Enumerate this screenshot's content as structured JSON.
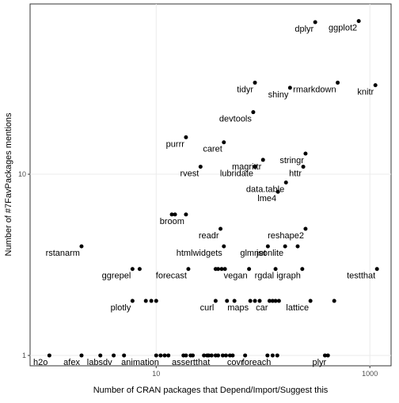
{
  "chart_data": {
    "type": "scatter",
    "x_label": "Number of CRAN packages that Depend/Import/Suggest this",
    "y_label": "Number of #7FavPackages mentions",
    "log_x": true,
    "log_y": true,
    "grid": true,
    "color": "#000000",
    "xlim": [
      0.66,
      1580
    ],
    "ylim": [
      0.877,
      87
    ],
    "xticks": [
      10,
      1000
    ],
    "yticks": [
      1,
      10
    ],
    "x": [
      1,
      2,
      3,
      4,
      5,
      10,
      11,
      12,
      13,
      18,
      19,
      21,
      22,
      28,
      30,
      31,
      33,
      36,
      38,
      42,
      45,
      49,
      52,
      68,
      110,
      123,
      136,
      380,
      405,
      6,
      8,
      9,
      10,
      36,
      46,
      54,
      76,
      84,
      93,
      115,
      123,
      131,
      141,
      278,
      464,
      6,
      7,
      20,
      36,
      38,
      41,
      44,
      74,
      131,
      233,
      1166,
      2,
      43,
      111,
      161,
      211,
      40,
      250,
      14,
      15,
      19,
      138,
      164,
      26,
      84,
      238,
      100,
      250,
      43,
      19,
      81,
      179,
      84,
      500,
      1127,
      308,
      787
    ],
    "values": [
      1,
      1,
      1,
      1,
      1,
      1,
      1,
      1,
      1,
      1,
      1,
      1,
      1,
      1,
      1,
      1,
      1,
      1,
      1,
      1,
      1,
      1,
      1,
      1,
      1,
      1,
      1,
      1,
      1,
      2,
      2,
      2,
      2,
      2,
      2,
      2,
      2,
      2,
      2,
      2,
      2,
      2,
      2,
      2,
      2,
      3,
      3,
      3,
      3,
      3,
      3,
      3,
      3,
      3,
      3,
      3,
      4,
      4,
      4,
      4,
      4,
      5,
      5,
      6,
      6,
      6,
      8,
      9,
      11,
      11,
      11,
      12,
      13,
      15,
      16,
      22,
      30,
      32,
      32,
      31,
      69,
      70
    ],
    "labels": [
      "h2o",
      "afex",
      null,
      "labsdv",
      null,
      null,
      "animation",
      null,
      null,
      null,
      null,
      null,
      null,
      null,
      null,
      null,
      "assertthat",
      null,
      null,
      null,
      null,
      null,
      null,
      "covr",
      null,
      "foreach",
      null,
      null,
      "plyr",
      "plotly",
      null,
      null,
      null,
      "curl",
      null,
      null,
      "maps",
      null,
      null,
      "car",
      null,
      null,
      null,
      "lattice",
      null,
      "ggrepel",
      null,
      "forecast",
      null,
      null,
      null,
      null,
      "vegan",
      "rgdal",
      "igraph",
      "testthat",
      "rstanarm",
      "htmlwidgets",
      "glmnet",
      "jsonlite",
      null,
      "readr",
      "reshape2",
      null,
      null,
      "broom",
      "lme4",
      "data.table",
      "rvest",
      "lubridate",
      "httr",
      "magrittr",
      "stringr",
      "caret",
      "purrr",
      "devtools",
      "shiny",
      "tidyr",
      "rmarkdown",
      "knitr",
      "dplyr",
      "ggplot2"
    ]
  }
}
